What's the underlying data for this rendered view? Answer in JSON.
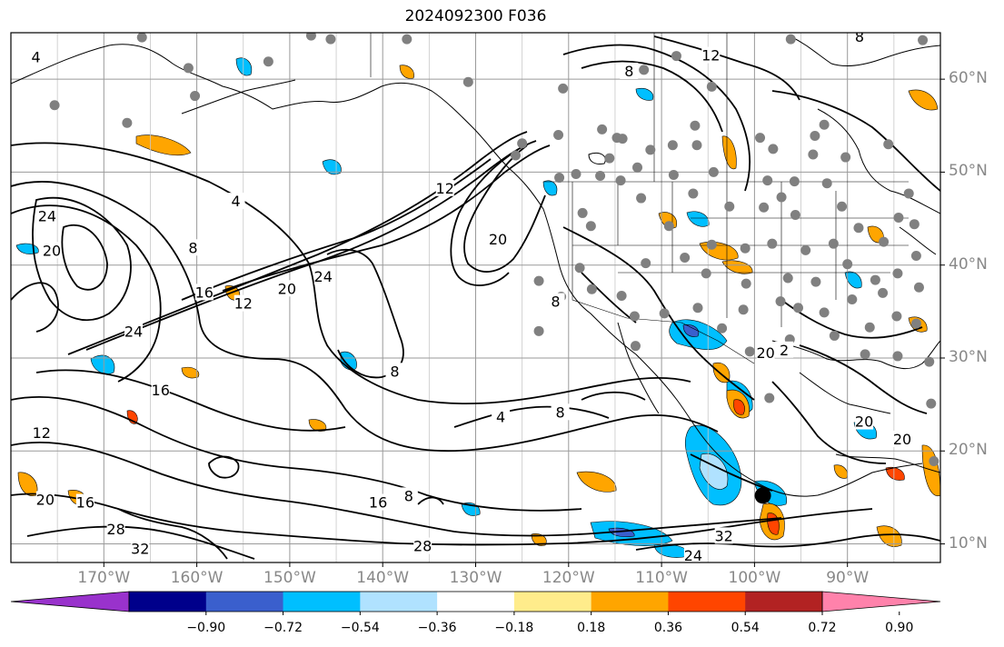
{
  "title": "2024092300 F036",
  "colors": {
    "contour": "#000000",
    "gridline": "#9a9a9a",
    "coast": "#000000",
    "station": "#808080",
    "axis_label": "#888888"
  },
  "map": {
    "lon_range": [
      -180,
      -80
    ],
    "lat_range": [
      8,
      65
    ],
    "lat_labels": [
      {
        "lat": 60,
        "label": "60°N"
      },
      {
        "lat": 50,
        "label": "50°N"
      },
      {
        "lat": 40,
        "label": "40°N"
      },
      {
        "lat": 30,
        "label": "30°N"
      },
      {
        "lat": 20,
        "label": "20°N"
      },
      {
        "lat": 10,
        "label": "10°N"
      }
    ],
    "lon_labels": [
      {
        "lon": -170,
        "label": "170°W"
      },
      {
        "lon": -160,
        "label": "160°W"
      },
      {
        "lon": -150,
        "label": "150°W"
      },
      {
        "lon": -140,
        "label": "140°W"
      },
      {
        "lon": -130,
        "label": "130°W"
      },
      {
        "lon": -120,
        "label": "120°W"
      },
      {
        "lon": -110,
        "label": "110°W"
      },
      {
        "lon": -100,
        "label": "100°W"
      },
      {
        "lon": -90,
        "label": "90°W"
      }
    ],
    "contour_labels": [
      {
        "text": "12",
        "lon": -104.7,
        "lat": 62.5
      },
      {
        "text": "8",
        "lon": -113.5,
        "lat": 60.8
      },
      {
        "text": "8",
        "lon": -88.7,
        "lat": 64.5
      },
      {
        "text": "4",
        "lon": -177.3,
        "lat": 62.3
      },
      {
        "text": "4",
        "lon": -155.8,
        "lat": 46.8
      },
      {
        "text": "24",
        "lon": -176.1,
        "lat": 45.2
      },
      {
        "text": "20",
        "lon": -175.6,
        "lat": 41.5
      },
      {
        "text": "8",
        "lon": -160.4,
        "lat": 41.8
      },
      {
        "text": "12",
        "lon": -133.3,
        "lat": 48.2
      },
      {
        "text": "20",
        "lon": -127.6,
        "lat": 42.7
      },
      {
        "text": "24",
        "lon": -146.4,
        "lat": 38.7
      },
      {
        "text": "20",
        "lon": -150.3,
        "lat": 37.4
      },
      {
        "text": "12",
        "lon": -155.0,
        "lat": 35.8
      },
      {
        "text": "16",
        "lon": -159.2,
        "lat": 37.0
      },
      {
        "text": "8",
        "lon": -121.4,
        "lat": 36.0
      },
      {
        "text": "24",
        "lon": -166.8,
        "lat": 32.8
      },
      {
        "text": "16",
        "lon": -163.9,
        "lat": 26.5
      },
      {
        "text": "8",
        "lon": -138.7,
        "lat": 28.5
      },
      {
        "text": "4",
        "lon": -127.3,
        "lat": 23.6
      },
      {
        "text": "8",
        "lon": -120.9,
        "lat": 24.1
      },
      {
        "text": "12",
        "lon": -176.7,
        "lat": 21.9
      },
      {
        "text": "20",
        "lon": -176.3,
        "lat": 14.7
      },
      {
        "text": "16",
        "lon": -172.0,
        "lat": 14.4
      },
      {
        "text": "8",
        "lon": -137.2,
        "lat": 15.1
      },
      {
        "text": "16",
        "lon": -140.5,
        "lat": 14.4
      },
      {
        "text": "28",
        "lon": -168.7,
        "lat": 11.5
      },
      {
        "text": "32",
        "lon": -166.1,
        "lat": 9.4
      },
      {
        "text": "28",
        "lon": -135.7,
        "lat": 9.7
      },
      {
        "text": "32",
        "lon": -103.3,
        "lat": 10.8
      },
      {
        "text": "24",
        "lon": -106.6,
        "lat": 8.7
      },
      {
        "text": "20",
        "lon": -98.8,
        "lat": 30.5
      },
      {
        "text": "20",
        "lon": -88.2,
        "lat": 23.1
      },
      {
        "text": "20",
        "lon": -84.1,
        "lat": 21.2
      },
      {
        "text": "2",
        "lon": -96.8,
        "lat": 30.8
      }
    ],
    "stations": [
      [
        -165.9,
        64.5
      ],
      [
        -160.9,
        61.2
      ],
      [
        -152.3,
        61.9
      ],
      [
        -147.7,
        64.7
      ],
      [
        -145.6,
        64.3
      ],
      [
        -137.4,
        64.3
      ],
      [
        -130.8,
        59.7
      ],
      [
        -120.6,
        59.0
      ],
      [
        -111.9,
        61.0
      ],
      [
        -108.4,
        62.5
      ],
      [
        -104.6,
        59.2
      ],
      [
        -96.1,
        64.3
      ],
      [
        -81.9,
        64.2
      ],
      [
        -175.3,
        57.2
      ],
      [
        -167.5,
        55.3
      ],
      [
        -160.2,
        58.2
      ],
      [
        -121.1,
        54.0
      ],
      [
        -116.4,
        54.6
      ],
      [
        -114.8,
        53.7
      ],
      [
        -114.2,
        53.6
      ],
      [
        -111.2,
        52.4
      ],
      [
        -108.8,
        52.9
      ],
      [
        -106.2,
        52.9
      ],
      [
        -99.4,
        53.7
      ],
      [
        -98.0,
        52.5
      ],
      [
        -93.5,
        53.9
      ],
      [
        -92.5,
        55.1
      ],
      [
        -90.2,
        51.6
      ],
      [
        -85.6,
        53.0
      ],
      [
        -106.4,
        55.0
      ],
      [
        -112.6,
        50.5
      ],
      [
        -116.6,
        49.6
      ],
      [
        -119.2,
        49.8
      ],
      [
        -121.0,
        49.4
      ],
      [
        -118.5,
        45.6
      ],
      [
        -117.6,
        44.2
      ],
      [
        -114.4,
        49.1
      ],
      [
        -108.7,
        49.7
      ],
      [
        -104.4,
        50.0
      ],
      [
        -98.6,
        49.1
      ],
      [
        -95.7,
        49.0
      ],
      [
        -93.7,
        51.9
      ],
      [
        -112.2,
        47.2
      ],
      [
        -106.6,
        47.7
      ],
      [
        -102.7,
        46.3
      ],
      [
        -99.0,
        46.2
      ],
      [
        -97.1,
        47.3
      ],
      [
        -95.6,
        45.4
      ],
      [
        -92.2,
        48.8
      ],
      [
        -90.6,
        46.3
      ],
      [
        -88.8,
        44.0
      ],
      [
        -86.1,
        42.5
      ],
      [
        -84.5,
        45.1
      ],
      [
        -82.8,
        44.4
      ],
      [
        -83.4,
        47.7
      ],
      [
        -109.2,
        44.2
      ],
      [
        -104.6,
        42.2
      ],
      [
        -101.0,
        41.8
      ],
      [
        -98.1,
        42.3
      ],
      [
        -94.5,
        41.6
      ],
      [
        -91.5,
        42.3
      ],
      [
        -111.7,
        40.2
      ],
      [
        -114.3,
        36.7
      ],
      [
        -107.5,
        40.8
      ],
      [
        -105.2,
        39.1
      ],
      [
        -100.9,
        38.0
      ],
      [
        -96.4,
        38.6
      ],
      [
        -93.4,
        38.2
      ],
      [
        -90.0,
        40.1
      ],
      [
        -87.0,
        38.4
      ],
      [
        -84.6,
        39.1
      ],
      [
        -82.6,
        41.0
      ],
      [
        -112.9,
        34.5
      ],
      [
        -109.7,
        34.8
      ],
      [
        -106.1,
        35.4
      ],
      [
        -101.2,
        35.2
      ],
      [
        -97.2,
        36.1
      ],
      [
        -95.3,
        35.4
      ],
      [
        -92.5,
        34.9
      ],
      [
        -89.5,
        36.3
      ],
      [
        -86.2,
        37.0
      ],
      [
        -82.3,
        37.6
      ],
      [
        -120.8,
        36.6
      ],
      [
        -123.2,
        38.3
      ],
      [
        -118.8,
        39.7
      ],
      [
        -112.8,
        31.3
      ],
      [
        -103.5,
        33.2
      ],
      [
        -100.5,
        30.7
      ],
      [
        -96.2,
        32.0
      ],
      [
        -91.4,
        32.4
      ],
      [
        -87.6,
        33.3
      ],
      [
        -84.7,
        34.5
      ],
      [
        -82.6,
        33.7
      ],
      [
        -88.1,
        30.4
      ],
      [
        -84.6,
        30.2
      ],
      [
        -81.2,
        29.6
      ],
      [
        -81.0,
        25.1
      ],
      [
        -80.7,
        18.9
      ],
      [
        -98.4,
        25.7
      ],
      [
        -123.2,
        32.9
      ],
      [
        -117.5,
        37.4
      ],
      [
        -125.7,
        51.8
      ],
      [
        -125.0,
        53.1
      ],
      [
        -115.6,
        51.5
      ]
    ],
    "tropical_marker": {
      "lon": -99.1,
      "lat": 15.2
    }
  },
  "colorbar": {
    "colors": [
      "#9932cc",
      "#00008b",
      "#3a5fcd",
      "#00bfff",
      "#b0e2ff",
      "#ffffff",
      "#ffec8b",
      "#ffa500",
      "#ff4500",
      "#b22222",
      "#ff82ab"
    ],
    "labels": [
      "−0.90",
      "−0.72",
      "−0.54",
      "−0.36",
      "−0.18",
      "0.18",
      "0.36",
      "0.54",
      "0.72",
      "0.90"
    ]
  }
}
